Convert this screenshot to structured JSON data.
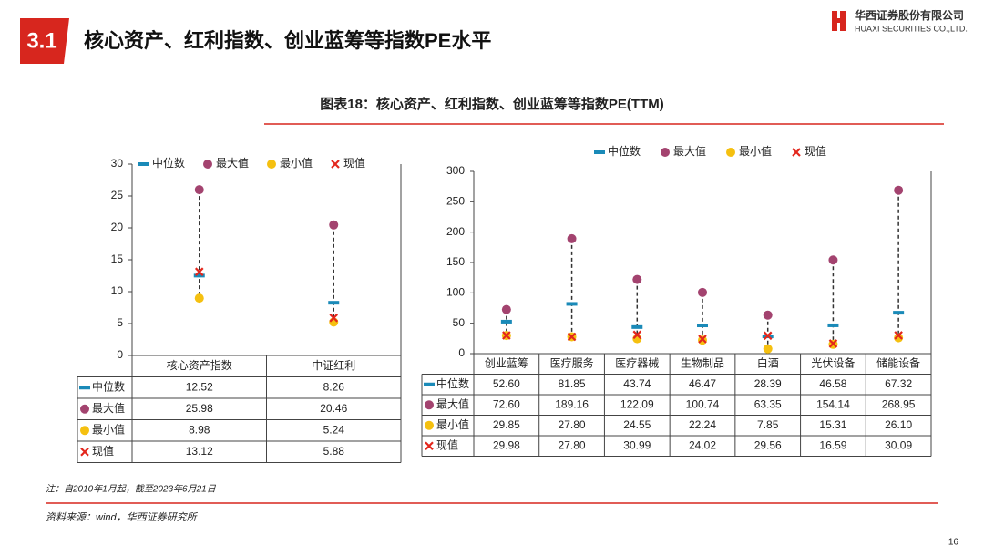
{
  "header": {
    "section": "3.1",
    "title": "核心资产、红利指数、创业蓝筹等指数PE水平",
    "company_cn": "华西证券股份有限公司",
    "company_en": "HUAXI SECURITIES CO.,LTD."
  },
  "figure_title": "图表18：核心资产、红利指数、创业蓝筹等指数PE(TTM)",
  "chart_data": [
    {
      "type": "dotplot",
      "categories": [
        "核心资产指数",
        "中证红利"
      ],
      "series": [
        {
          "name": "中位数",
          "color": "#1a8ab8",
          "marker": "dash",
          "values": [
            12.52,
            8.26
          ],
          "value_labels": [
            "12.52",
            "8.26"
          ]
        },
        {
          "name": "最大值",
          "color": "#a3436f",
          "marker": "circle",
          "values": [
            25.98,
            20.46
          ],
          "value_labels": [
            "25.98",
            "20.46"
          ]
        },
        {
          "name": "最小值",
          "color": "#f5c010",
          "marker": "circle",
          "values": [
            8.98,
            5.24
          ],
          "value_labels": [
            "8.98",
            "5.24"
          ]
        },
        {
          "name": "现值",
          "color": "#e3261c",
          "marker": "x",
          "values": [
            13.12,
            5.88
          ],
          "value_labels": [
            "13.12",
            "5.88"
          ]
        }
      ],
      "ylim": [
        0,
        30
      ],
      "yticks": [
        0,
        5,
        10,
        15,
        20,
        25,
        30
      ],
      "grid": false
    },
    {
      "type": "dotplot",
      "categories": [
        "创业蓝筹",
        "医疗服务",
        "医疗器械",
        "生物制品",
        "白酒",
        "光伏设备",
        "储能设备"
      ],
      "series": [
        {
          "name": "中位数",
          "color": "#1a8ab8",
          "marker": "dash",
          "values": [
            52.6,
            81.85,
            43.74,
            46.47,
            28.39,
            46.58,
            67.32
          ],
          "value_labels": [
            "52.60",
            "81.85",
            "43.74",
            "46.47",
            "28.39",
            "46.58",
            "67.32"
          ]
        },
        {
          "name": "最大值",
          "color": "#a3436f",
          "marker": "circle",
          "values": [
            72.6,
            189.16,
            122.09,
            100.74,
            63.35,
            154.14,
            268.95
          ],
          "value_labels": [
            "72.60",
            "189.16",
            "122.09",
            "100.74",
            "63.35",
            "154.14",
            "268.95"
          ]
        },
        {
          "name": "最小值",
          "color": "#f5c010",
          "marker": "circle",
          "values": [
            29.85,
            27.8,
            24.55,
            22.24,
            7.85,
            15.31,
            26.1
          ],
          "value_labels": [
            "29.85",
            "27.80",
            "24.55",
            "22.24",
            "7.85",
            "15.31",
            "26.10"
          ]
        },
        {
          "name": "现值",
          "color": "#e3261c",
          "marker": "x",
          "values": [
            29.98,
            27.8,
            30.99,
            24.02,
            29.56,
            16.59,
            30.09
          ],
          "value_labels": [
            "29.98",
            "27.80",
            "30.99",
            "24.02",
            "29.56",
            "16.59",
            "30.09"
          ]
        }
      ],
      "ylim": [
        0,
        300
      ],
      "yticks": [
        0,
        50,
        100,
        150,
        200,
        250,
        300
      ],
      "grid": false
    }
  ],
  "notes": [
    "注：自2010年1月起，截至2023年6月21日",
    "资料来源：wind，华西证券研究所"
  ],
  "page_number": "16"
}
